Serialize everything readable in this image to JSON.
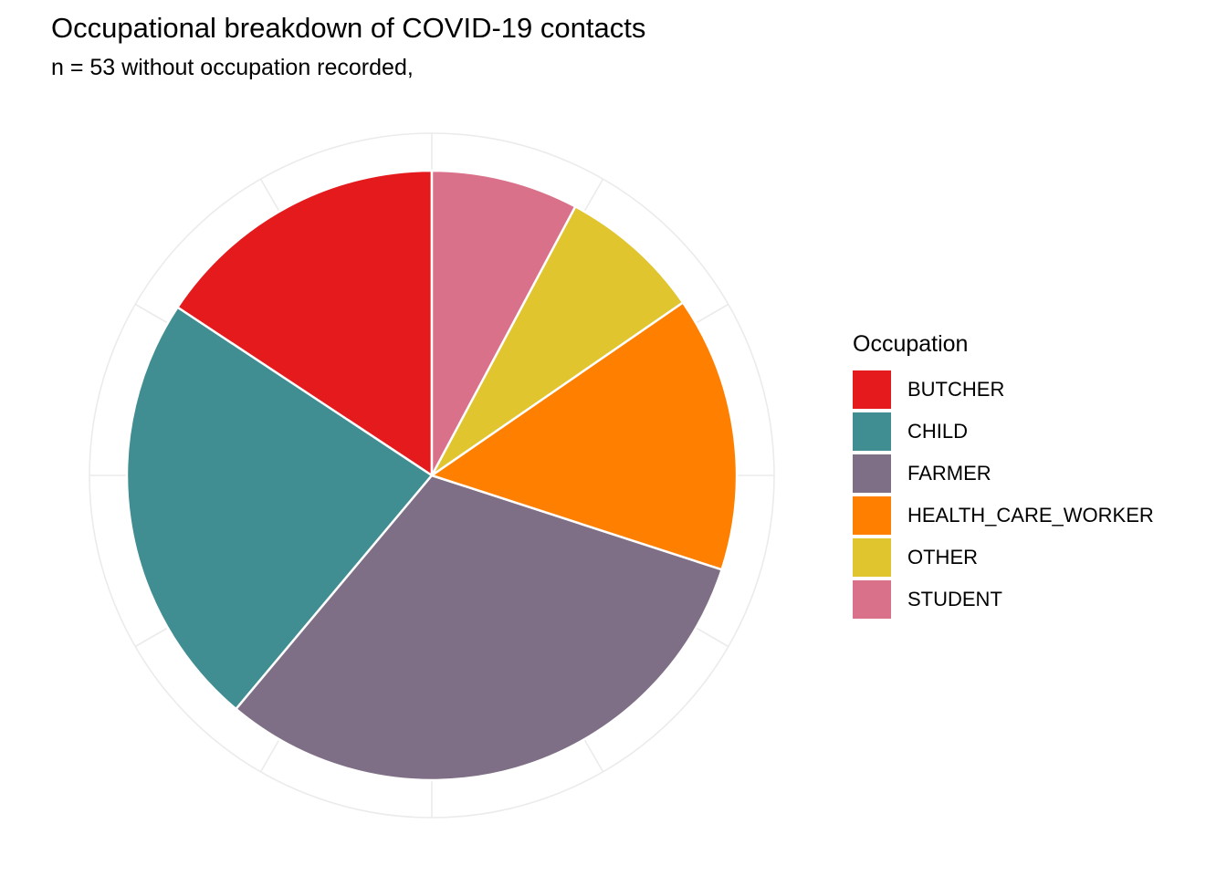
{
  "chart_title": "Occupational breakdown of COVID-19 contacts",
  "chart_subtitle": "n = 53 without occupation recorded,",
  "legend_title": "Occupation",
  "chart_data": {
    "type": "pie",
    "title": "Occupational breakdown of COVID-19 contacts",
    "subtitle": "n = 53 without occupation recorded,",
    "legend": {
      "title": "Occupation",
      "position": "right"
    },
    "grid": true,
    "slices": [
      {
        "label": "BUTCHER",
        "value": 15.7,
        "color": "#E41A1C"
      },
      {
        "label": "CHILD",
        "value": 23.2,
        "color": "#408D92"
      },
      {
        "label": "FARMER",
        "value": 31.1,
        "color": "#7F6F86"
      },
      {
        "label": "HEALTH_CARE_WORKER",
        "value": 14.6,
        "color": "#FF7F00"
      },
      {
        "label": "OTHER",
        "value": 7.6,
        "color": "#E0C52E"
      },
      {
        "label": "STUDENT",
        "value": 7.8,
        "color": "#D9718B"
      }
    ]
  }
}
